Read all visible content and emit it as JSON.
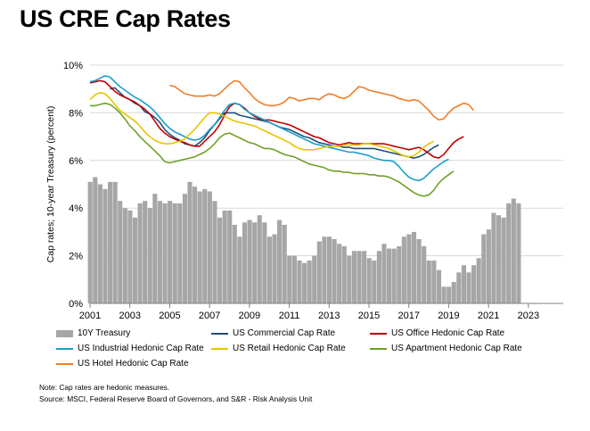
{
  "chart_data": {
    "type": "bar+line",
    "title": "US CRE Cap Rates",
    "ylabel": "Cap rates; 10-year Treasury (percent)",
    "xlabel": "",
    "ylim": [
      0,
      10
    ],
    "y_ticks": [
      "0%",
      "2%",
      "4%",
      "6%",
      "8%",
      "10%"
    ],
    "x_ticks": [
      "2001",
      "2003",
      "2005",
      "2007",
      "2009",
      "2011",
      "2013",
      "2015",
      "2017",
      "2019",
      "2021",
      "2023"
    ],
    "x_start": 2001,
    "quarter_step": 0.25,
    "bars": {
      "name": "10Y Treasury",
      "color": "#a6a6a6",
      "values": [
        5.1,
        5.3,
        5.0,
        4.8,
        5.1,
        5.1,
        4.3,
        4.0,
        3.9,
        3.6,
        4.2,
        4.3,
        4.0,
        4.6,
        4.3,
        4.2,
        4.3,
        4.2,
        4.2,
        4.6,
        5.1,
        4.9,
        4.7,
        4.8,
        4.7,
        4.3,
        3.6,
        3.9,
        3.9,
        3.3,
        2.8,
        3.4,
        3.5,
        3.4,
        3.7,
        3.4,
        2.8,
        2.9,
        3.5,
        3.3,
        2.0,
        2.0,
        1.8,
        1.7,
        1.8,
        2.0,
        2.6,
        2.8,
        2.8,
        2.7,
        2.5,
        2.4,
        2.0,
        2.2,
        2.2,
        2.2,
        1.9,
        1.8,
        2.2,
        2.5,
        2.3,
        2.3,
        2.4,
        2.8,
        2.9,
        3.0,
        2.7,
        2.4,
        1.8,
        1.8,
        1.4,
        0.7,
        0.7,
        0.9,
        1.3,
        1.6,
        1.3,
        1.6,
        1.9,
        2.9,
        3.1,
        3.8,
        3.7,
        3.6,
        4.2,
        4.4,
        4.2
      ]
    },
    "series": [
      {
        "name": "US Commercial Cap Rate",
        "color": "#1f4e79",
        "start": 2002.0,
        "values": [
          9.0,
          9.05,
          8.85,
          8.65,
          8.55,
          8.4,
          8.3,
          8.05,
          7.95,
          7.8,
          7.6,
          7.3,
          7.1,
          6.95,
          6.85,
          6.7,
          6.65,
          6.6,
          6.75,
          6.95,
          7.25,
          7.5,
          7.75,
          8.0,
          8.0,
          8.0,
          7.9,
          7.85,
          7.8,
          7.75,
          7.7,
          7.65,
          7.6,
          7.5,
          7.4,
          7.35,
          7.3,
          7.2,
          7.1,
          7.0,
          6.95,
          6.85,
          6.75,
          6.7,
          6.65,
          6.6,
          6.6,
          6.55,
          6.55,
          6.5,
          6.5,
          6.5,
          6.5,
          6.5,
          6.45,
          6.4,
          6.35,
          6.3,
          6.25,
          6.2,
          6.15,
          6.1,
          6.15,
          6.25,
          6.4,
          6.55,
          6.65
        ]
      },
      {
        "name": "US Office Hedonic Cap Rate",
        "color": "#c00000",
        "start": 2001.0,
        "values": [
          9.25,
          9.3,
          9.35,
          9.3,
          9.1,
          8.9,
          8.75,
          8.65,
          8.55,
          8.45,
          8.3,
          8.15,
          7.95,
          7.65,
          7.35,
          7.15,
          7.0,
          6.9,
          6.8,
          6.75,
          6.65,
          6.6,
          6.6,
          6.8,
          7.0,
          7.2,
          7.5,
          7.9,
          8.25,
          8.4,
          8.35,
          8.2,
          8.0,
          7.85,
          7.75,
          7.7,
          7.7,
          7.65,
          7.6,
          7.55,
          7.5,
          7.4,
          7.3,
          7.2,
          7.1,
          7.0,
          6.95,
          6.85,
          6.75,
          6.7,
          6.65,
          6.7,
          6.75,
          6.7,
          6.7,
          6.7,
          6.7,
          6.7,
          6.7,
          6.7,
          6.65,
          6.6,
          6.55,
          6.5,
          6.45,
          6.5,
          6.55,
          6.45,
          6.3,
          6.15,
          6.1,
          6.25,
          6.5,
          6.75,
          6.9,
          7.0
        ]
      },
      {
        "name": "US Industrial Hedonic Cap Rate",
        "color": "#1a9fc9",
        "start": 2001.0,
        "values": [
          9.3,
          9.35,
          9.45,
          9.55,
          9.5,
          9.3,
          9.1,
          8.95,
          8.8,
          8.65,
          8.55,
          8.4,
          8.25,
          8.05,
          7.8,
          7.55,
          7.35,
          7.2,
          7.1,
          7.0,
          6.9,
          6.85,
          6.9,
          7.05,
          7.3,
          7.5,
          7.8,
          8.1,
          8.35,
          8.4,
          8.35,
          8.15,
          8.0,
          7.9,
          7.8,
          7.7,
          7.6,
          7.5,
          7.4,
          7.3,
          7.2,
          7.1,
          7.0,
          6.9,
          6.8,
          6.7,
          6.65,
          6.6,
          6.55,
          6.5,
          6.45,
          6.4,
          6.35,
          6.35,
          6.3,
          6.25,
          6.2,
          6.1,
          6.05,
          6.0,
          6.0,
          5.95,
          5.75,
          5.5,
          5.3,
          5.2,
          5.15,
          5.25,
          5.45,
          5.65,
          5.8,
          5.95,
          6.05
        ]
      },
      {
        "name": "US Retail Hedonic Cap Rate",
        "color": "#e6c500",
        "start": 2001.0,
        "values": [
          8.55,
          8.75,
          8.85,
          8.8,
          8.6,
          8.35,
          8.1,
          7.95,
          7.8,
          7.65,
          7.45,
          7.2,
          7.0,
          6.85,
          6.75,
          6.7,
          6.7,
          6.75,
          6.8,
          6.9,
          7.1,
          7.3,
          7.55,
          7.8,
          8.0,
          8.0,
          7.95,
          7.85,
          7.75,
          7.65,
          7.6,
          7.55,
          7.5,
          7.45,
          7.35,
          7.25,
          7.15,
          7.05,
          6.95,
          6.85,
          6.75,
          6.6,
          6.5,
          6.45,
          6.45,
          6.45,
          6.5,
          6.55,
          6.6,
          6.6,
          6.6,
          6.65,
          6.65,
          6.65,
          6.65,
          6.7,
          6.7,
          6.65,
          6.6,
          6.55,
          6.5,
          6.4,
          6.3,
          6.2,
          6.15,
          6.2,
          6.35,
          6.55,
          6.7,
          6.8
        ]
      },
      {
        "name": "US Apartment Hedonic Cap Rate",
        "color": "#70a028",
        "start": 2001.0,
        "values": [
          8.3,
          8.3,
          8.35,
          8.4,
          8.35,
          8.2,
          8.0,
          7.75,
          7.45,
          7.25,
          7.0,
          6.8,
          6.6,
          6.4,
          6.2,
          5.95,
          5.9,
          5.95,
          6.0,
          6.05,
          6.1,
          6.15,
          6.25,
          6.35,
          6.5,
          6.7,
          6.95,
          7.1,
          7.15,
          7.05,
          6.95,
          6.85,
          6.75,
          6.7,
          6.6,
          6.5,
          6.5,
          6.45,
          6.35,
          6.25,
          6.2,
          6.15,
          6.05,
          5.95,
          5.85,
          5.8,
          5.75,
          5.7,
          5.6,
          5.55,
          5.55,
          5.5,
          5.5,
          5.45,
          5.45,
          5.45,
          5.4,
          5.4,
          5.35,
          5.35,
          5.3,
          5.2,
          5.1,
          4.95,
          4.8,
          4.65,
          4.55,
          4.5,
          4.55,
          4.75,
          5.05,
          5.25,
          5.4,
          5.55
        ]
      },
      {
        "name": "US Hotel Hedonic Cap Rate",
        "color": "#f07d28",
        "start": 2005.0,
        "values": [
          9.15,
          9.1,
          8.95,
          8.8,
          8.75,
          8.7,
          8.7,
          8.7,
          8.75,
          8.7,
          8.8,
          9.0,
          9.2,
          9.35,
          9.3,
          9.05,
          8.85,
          8.6,
          8.45,
          8.35,
          8.3,
          8.3,
          8.35,
          8.45,
          8.65,
          8.6,
          8.5,
          8.55,
          8.6,
          8.6,
          8.55,
          8.7,
          8.8,
          8.75,
          8.65,
          8.6,
          8.7,
          8.9,
          9.1,
          9.05,
          8.95,
          8.9,
          8.85,
          8.8,
          8.75,
          8.7,
          8.6,
          8.55,
          8.5,
          8.55,
          8.5,
          8.3,
          8.1,
          7.85,
          7.7,
          7.75,
          8.0,
          8.2,
          8.3,
          8.4,
          8.35,
          8.1
        ]
      }
    ],
    "legend_position": "bottom"
  },
  "notes": {
    "line1": "Note: Cap rates are hedonic measures.",
    "line2": "Source: MSCI, Federal Reserve Board of Governors, and S&R - Risk Analysis Unit"
  }
}
